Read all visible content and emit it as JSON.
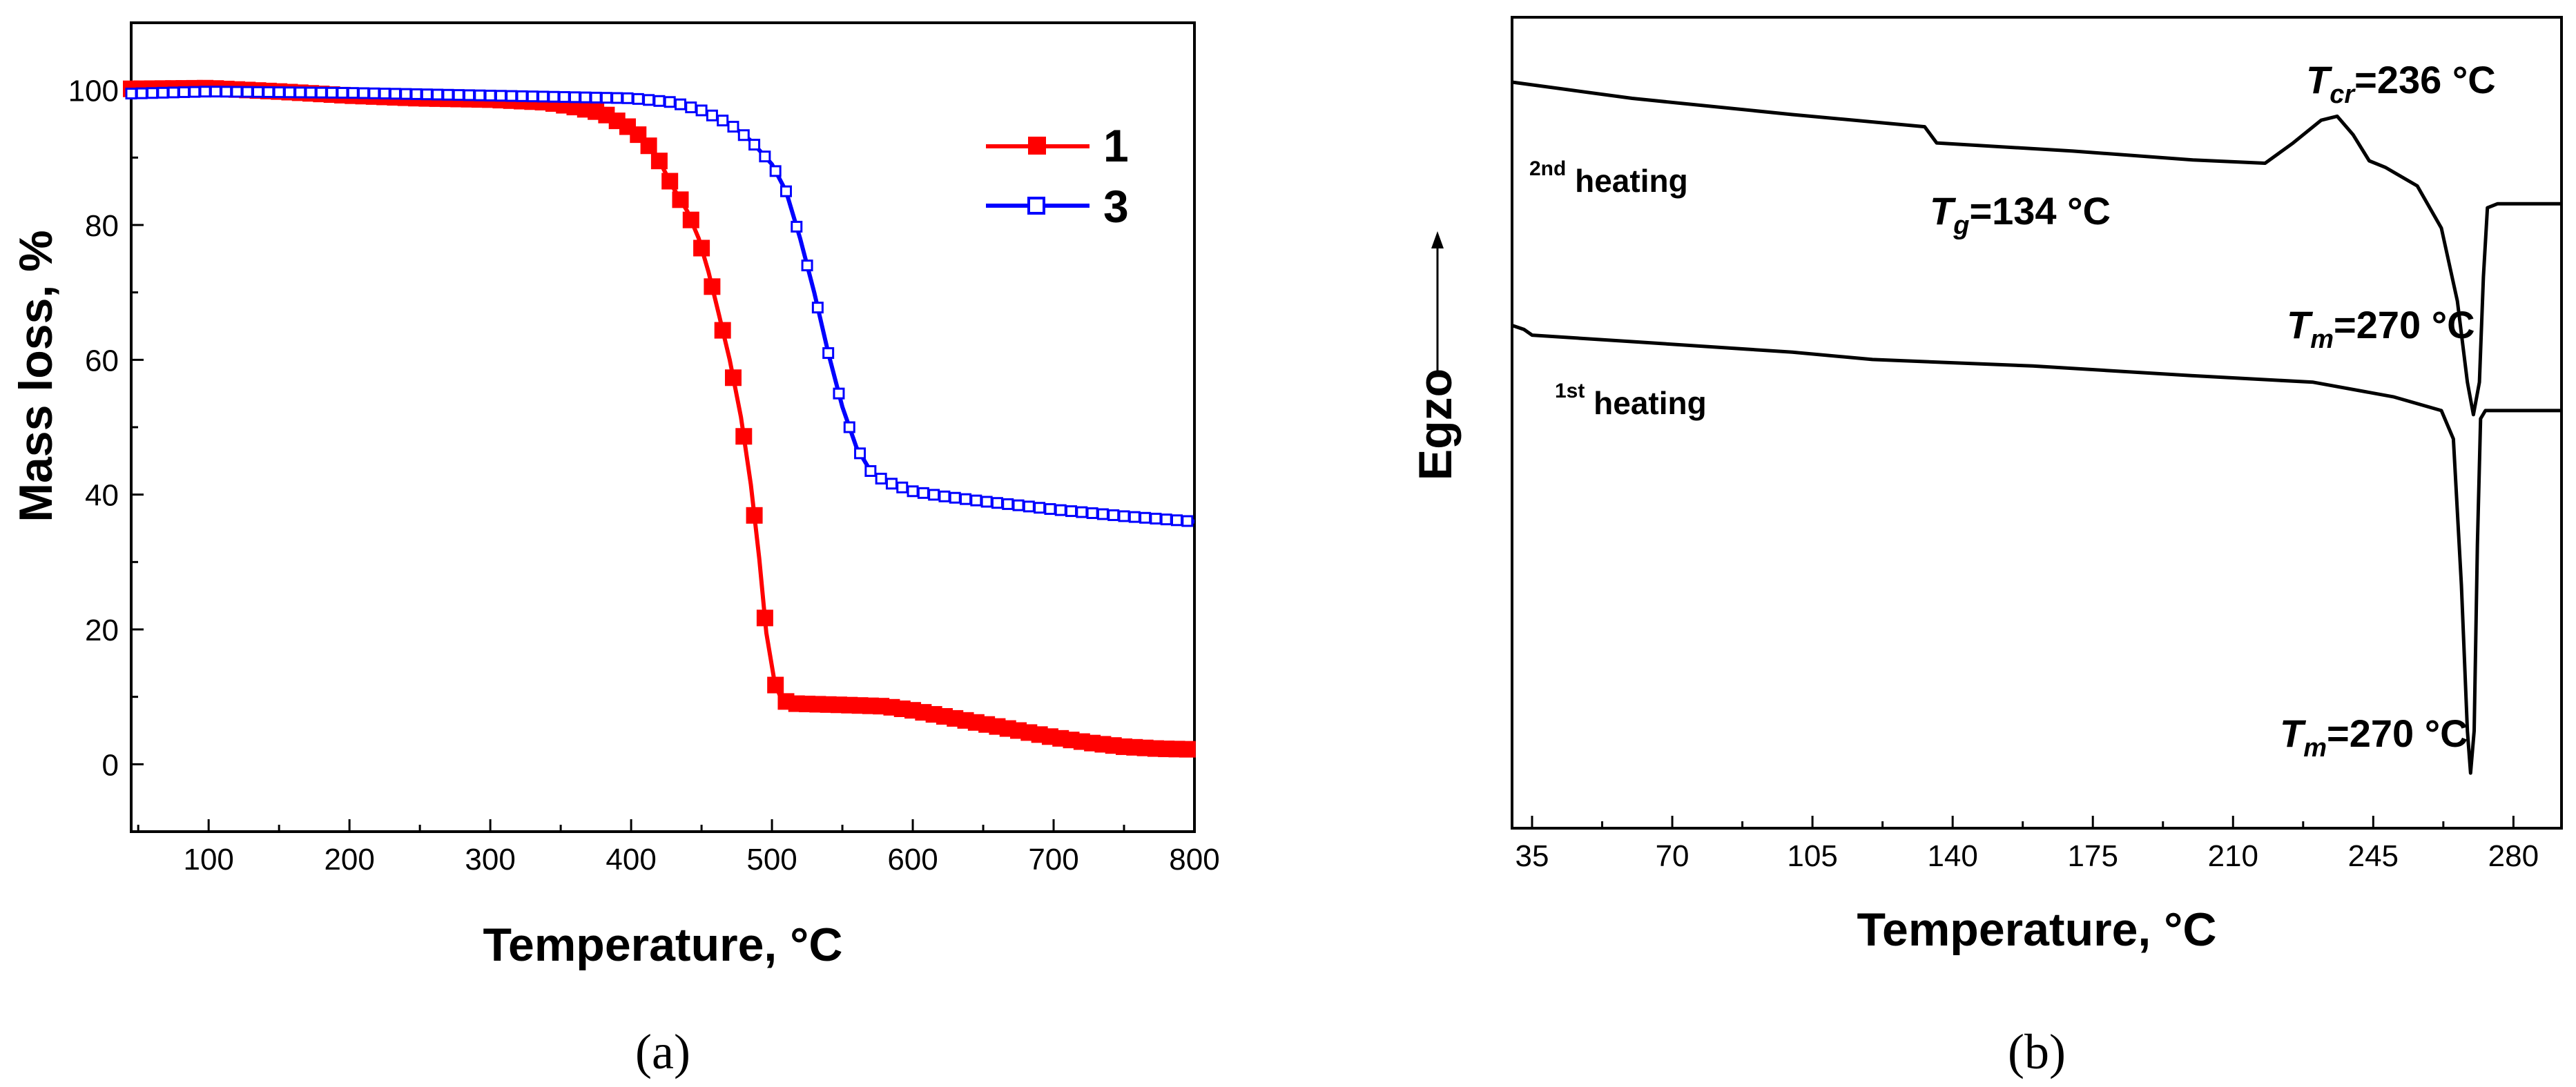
{
  "chart_data": [
    {
      "id": "a",
      "type": "line",
      "caption": "(a)",
      "xlabel": "Temperature, °C",
      "ylabel": "Mass loss, %",
      "xlim": [
        45,
        800
      ],
      "ylim": [
        -10,
        110
      ],
      "xticks": [
        100,
        200,
        300,
        400,
        500,
        600,
        700,
        800
      ],
      "yticks": [
        0,
        20,
        40,
        60,
        80,
        100
      ],
      "legend_position": "top-right",
      "series": [
        {
          "name": "1",
          "color": "#ff0000",
          "marker": "filled-square",
          "points": [
            [
              45,
              100.2
            ],
            [
              100,
              100.3
            ],
            [
              150,
              99.8
            ],
            [
              200,
              99.2
            ],
            [
              250,
              98.8
            ],
            [
              300,
              98.6
            ],
            [
              340,
              98.2
            ],
            [
              360,
              97.5
            ],
            [
              380,
              96.6
            ],
            [
              400,
              94.3
            ],
            [
              410,
              92.5
            ],
            [
              420,
              89.5
            ],
            [
              430,
              85.5
            ],
            [
              440,
              82.0
            ],
            [
              448,
              78.0
            ],
            [
              455,
              73.0
            ],
            [
              462,
              67.0
            ],
            [
              470,
              60.0
            ],
            [
              478,
              51.5
            ],
            [
              485,
              41.5
            ],
            [
              491,
              30.5
            ],
            [
              496,
              19.5
            ],
            [
              502,
              12.0
            ],
            [
              507,
              9.5
            ],
            [
              515,
              9.0
            ],
            [
              550,
              8.8
            ],
            [
              580,
              8.6
            ],
            [
              600,
              8.0
            ],
            [
              625,
              7.0
            ],
            [
              650,
              6.0
            ],
            [
              675,
              5.0
            ],
            [
              700,
              4.0
            ],
            [
              725,
              3.2
            ],
            [
              750,
              2.6
            ],
            [
              775,
              2.3
            ],
            [
              800,
              2.2
            ]
          ]
        },
        {
          "name": "3",
          "color": "#0000ff",
          "marker": "open-square",
          "points": [
            [
              45,
              99.5
            ],
            [
              100,
              99.8
            ],
            [
              200,
              99.6
            ],
            [
              300,
              99.2
            ],
            [
              350,
              99.0
            ],
            [
              400,
              98.8
            ],
            [
              430,
              98.2
            ],
            [
              450,
              97.0
            ],
            [
              470,
              95.0
            ],
            [
              485,
              92.5
            ],
            [
              500,
              89.0
            ],
            [
              510,
              85.0
            ],
            [
              520,
              78.0
            ],
            [
              530,
              70.0
            ],
            [
              540,
              61.0
            ],
            [
              550,
              53.0
            ],
            [
              560,
              47.0
            ],
            [
              570,
              43.5
            ],
            [
              580,
              42.0
            ],
            [
              600,
              40.5
            ],
            [
              620,
              39.8
            ],
            [
              650,
              39.0
            ],
            [
              680,
              38.3
            ],
            [
              700,
              37.8
            ],
            [
              750,
              36.8
            ],
            [
              800,
              36.0
            ]
          ]
        }
      ]
    },
    {
      "id": "b",
      "type": "line",
      "caption": "(b)",
      "xlabel": "Temperature, °C",
      "ylabel": "Egzo",
      "xlim": [
        30,
        292
      ],
      "ylim": [
        0,
        100
      ],
      "xticks": [
        35,
        70,
        105,
        140,
        175,
        210,
        245,
        280
      ],
      "yticks": [],
      "series": [
        {
          "name": "2nd heating",
          "color": "#000000",
          "points": [
            [
              30,
              92
            ],
            [
              60,
              90
            ],
            [
              100,
              88
            ],
            [
              133,
              86.5
            ],
            [
              136,
              84.5
            ],
            [
              170,
              83.5
            ],
            [
              200,
              82.4
            ],
            [
              218,
              82.0
            ],
            [
              225,
              84.5
            ],
            [
              232,
              87.3
            ],
            [
              236,
              87.8
            ],
            [
              240,
              85.5
            ],
            [
              244,
              82.3
            ],
            [
              248,
              81.5
            ],
            [
              256,
              79.2
            ],
            [
              262,
              74.0
            ],
            [
              266,
              65.0
            ],
            [
              268.5,
              55.0
            ],
            [
              270,
              51.0
            ],
            [
              271.5,
              55.0
            ],
            [
              272.5,
              68.0
            ],
            [
              273.5,
              76.5
            ],
            [
              276,
              77.0
            ],
            [
              292,
              77.0
            ]
          ]
        },
        {
          "name": "1st heating",
          "color": "#000000",
          "points": [
            [
              30,
              62
            ],
            [
              33,
              61.5
            ],
            [
              35,
              60.8
            ],
            [
              60,
              60
            ],
            [
              100,
              58.7
            ],
            [
              120,
              57.8
            ],
            [
              160,
              57.0
            ],
            [
              200,
              55.8
            ],
            [
              230,
              55.0
            ],
            [
              250,
              53.2
            ],
            [
              262,
              51.5
            ],
            [
              265,
              48.0
            ],
            [
              267,
              30.0
            ],
            [
              268.5,
              12.0
            ],
            [
              269.3,
              6.8
            ],
            [
              270.2,
              12.0
            ],
            [
              271,
              35.0
            ],
            [
              271.8,
              50.5
            ],
            [
              273,
              51.5
            ],
            [
              292,
              51.5
            ]
          ]
        }
      ],
      "annotations": {
        "tcr": {
          "symbol": "T",
          "sub": "cr",
          "value": "=236 °C"
        },
        "tg": {
          "symbol": "T",
          "sub": "g",
          "value": "=134 °C"
        },
        "tm2": {
          "symbol": "T",
          "sub": "m",
          "value": "=270 °C"
        },
        "tm1": {
          "symbol": "T",
          "sub": "m",
          "value": "=270 °C"
        }
      },
      "curve_labels": {
        "second": {
          "sup": "2nd",
          "text": " heating"
        },
        "first": {
          "sup": "1st",
          "text": " heating"
        }
      }
    }
  ]
}
